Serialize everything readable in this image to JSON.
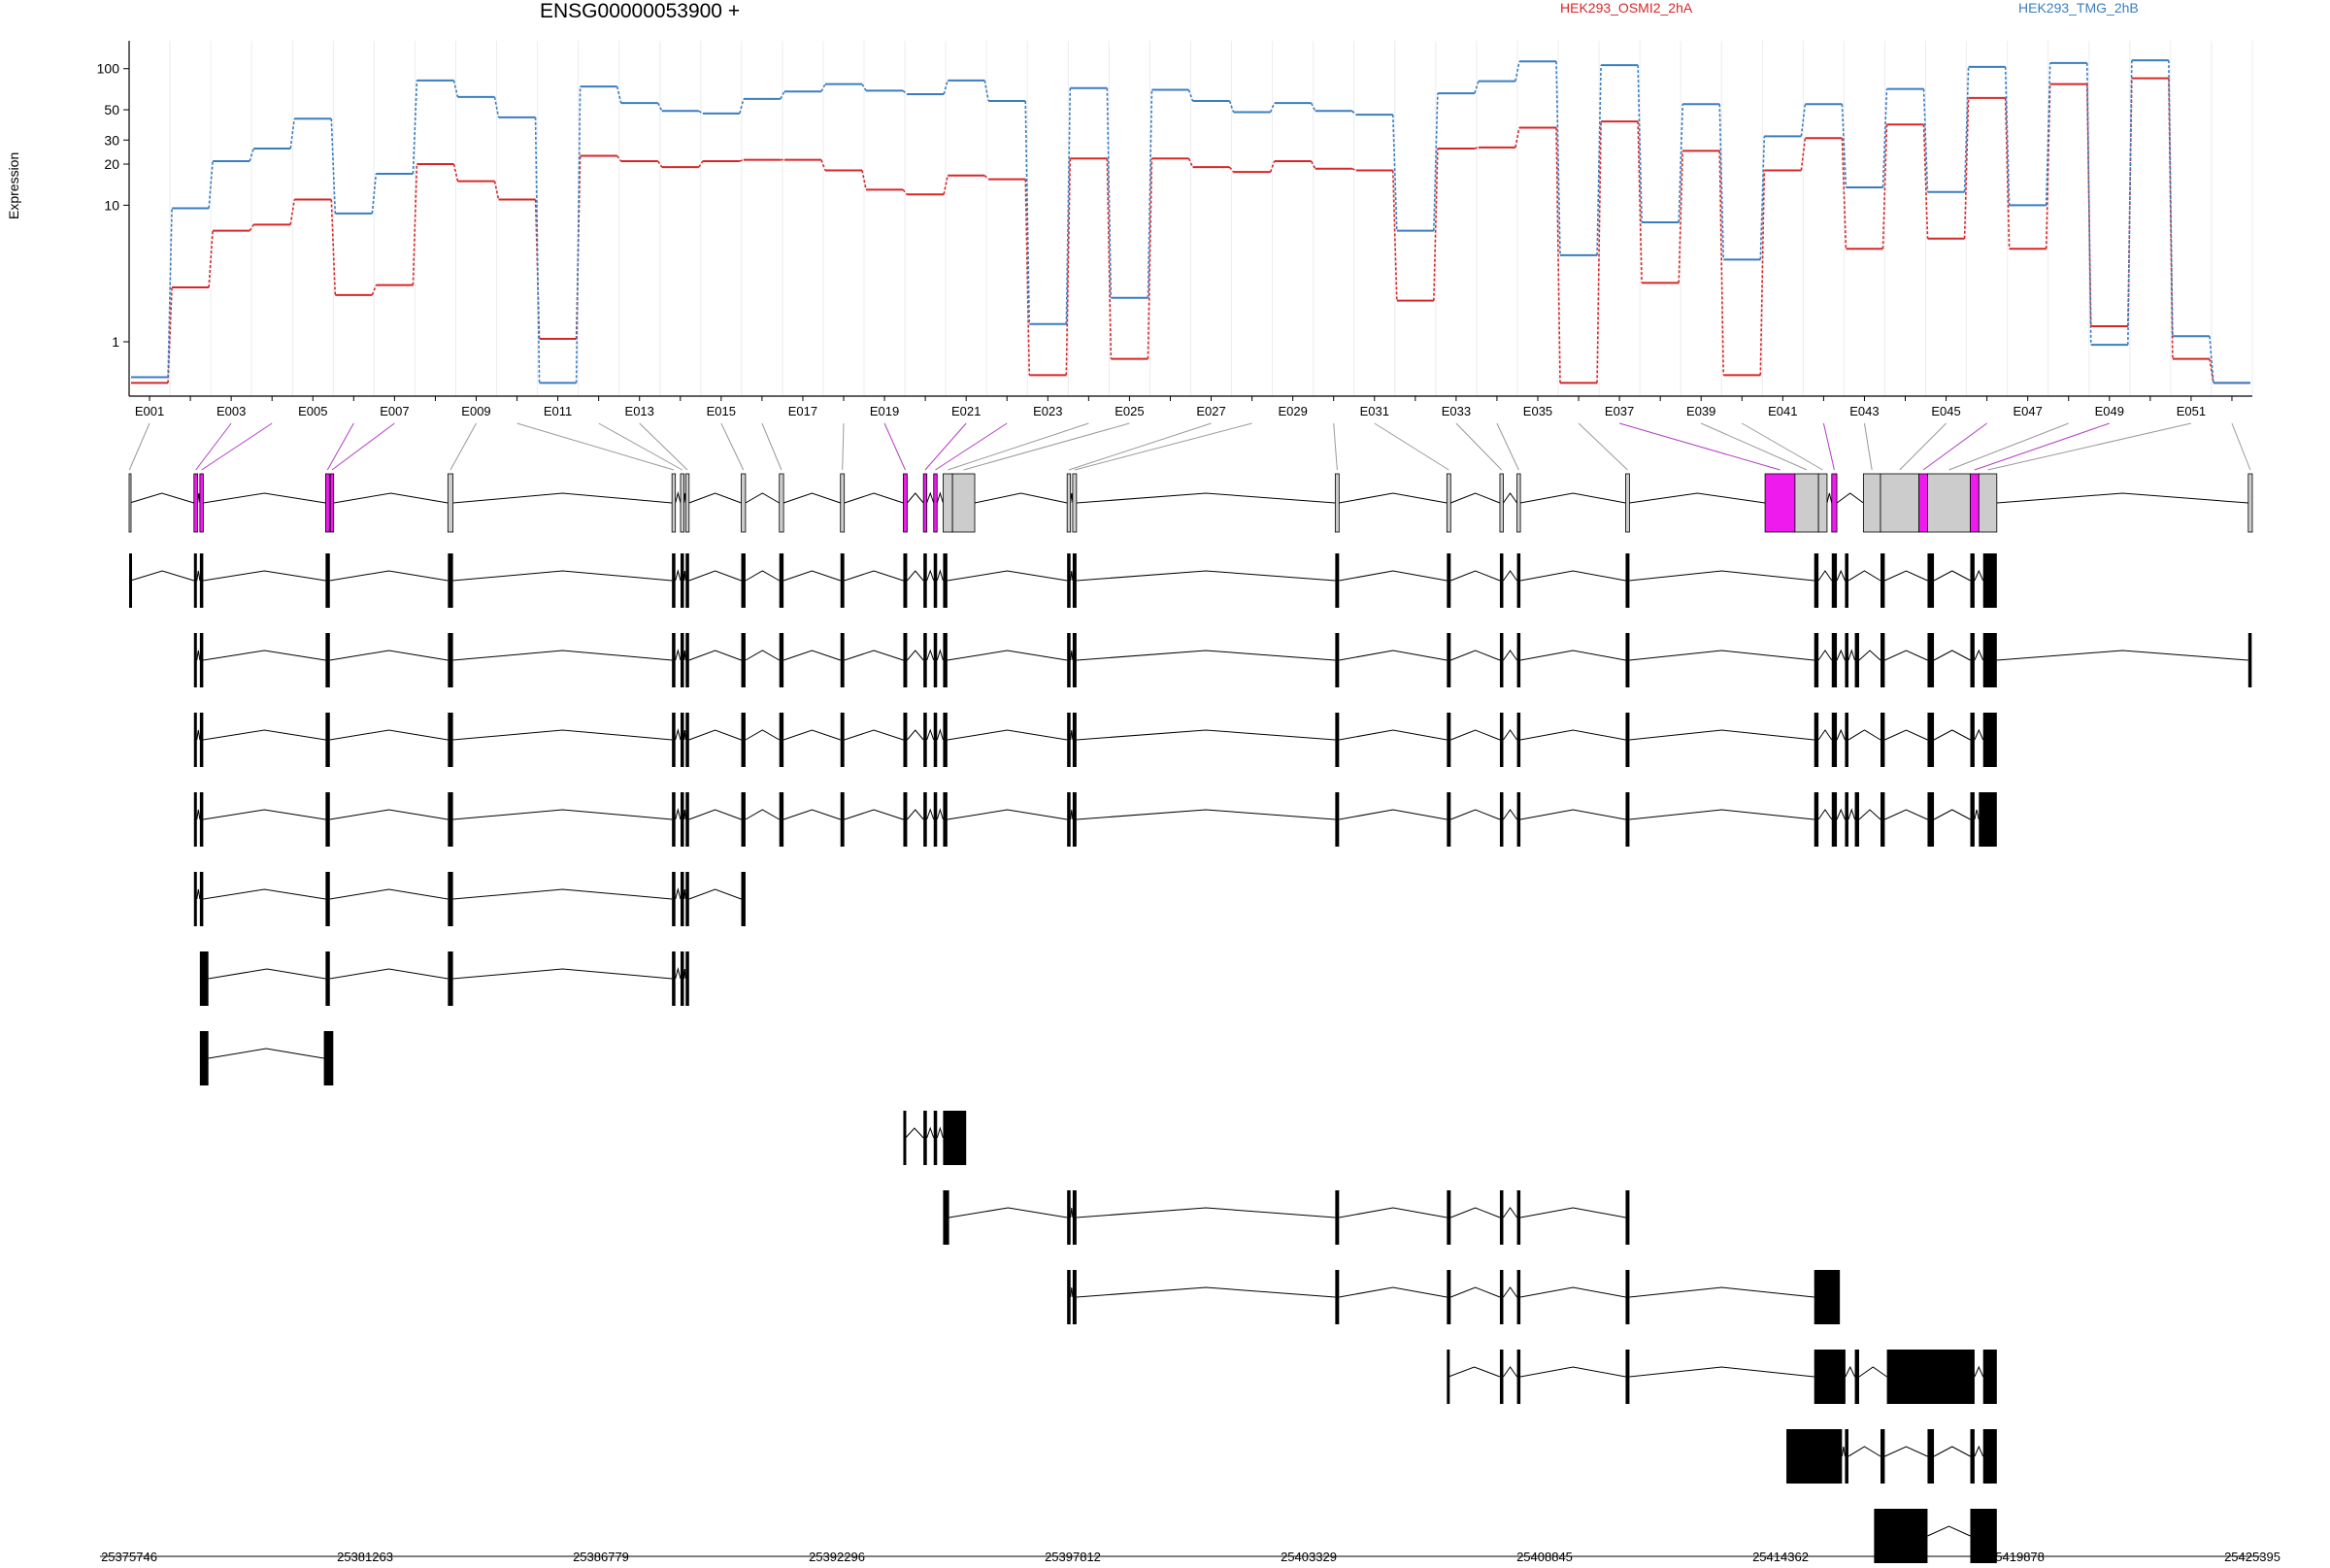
{
  "chart_data": {
    "type": "line",
    "title": "ENSG00000053900 +",
    "ylabel": "Expression",
    "xlabel": "",
    "yscale": "log",
    "ylim": [
      0.4,
      160
    ],
    "yticks": [
      1,
      10,
      20,
      30,
      50,
      100
    ],
    "exon_labels_shown": [
      "E001",
      "E003",
      "E005",
      "E007",
      "E009",
      "E011",
      "E013",
      "E015",
      "E017",
      "E019",
      "E021",
      "E023",
      "E025",
      "E027",
      "E029",
      "E031",
      "E033",
      "E035",
      "E037",
      "E039",
      "E041",
      "E043",
      "E045",
      "E047",
      "E049",
      "E051"
    ],
    "exons": [
      "E001",
      "E002",
      "E003",
      "E004",
      "E005",
      "E006",
      "E007",
      "E008",
      "E009",
      "E010",
      "E011",
      "E012",
      "E013",
      "E014",
      "E015",
      "E016",
      "E017",
      "E018",
      "E019",
      "E020",
      "E021",
      "E022",
      "E023",
      "E024",
      "E025",
      "E026",
      "E027",
      "E028",
      "E029",
      "E030",
      "E031",
      "E032",
      "E033",
      "E034",
      "E035",
      "E036",
      "E037",
      "E038",
      "E039",
      "E040",
      "E041",
      "E042",
      "E043",
      "E044",
      "E045",
      "E046",
      "E047",
      "E048",
      "E049",
      "E050",
      "E051",
      "E052"
    ],
    "series": [
      {
        "name": "HEK293_OSMI2_2hA",
        "color": "#d62728",
        "values": [
          0.5,
          2.5,
          6.5,
          7.2,
          11,
          2.2,
          2.6,
          20,
          15,
          11,
          1.05,
          23,
          21,
          19,
          21,
          21.5,
          21.5,
          18,
          13,
          12,
          16.5,
          15.5,
          0.57,
          22,
          0.75,
          22,
          19,
          17.5,
          21,
          18.5,
          18,
          2,
          26,
          26.5,
          37,
          0.5,
          41,
          2.7,
          25,
          0.57,
          18,
          31,
          4.8,
          39,
          5.7,
          61,
          4.8,
          77,
          1.3,
          85,
          0.75,
          0.5
        ]
      },
      {
        "name": "HEK293_TMG_2hB",
        "color": "#3a7dbf",
        "values": [
          0.55,
          9.5,
          21,
          26,
          43,
          8.7,
          17,
          82,
          62,
          44,
          0.5,
          74,
          56,
          49,
          47,
          60,
          68,
          77,
          69,
          65,
          82,
          58,
          1.35,
          72,
          2.1,
          70,
          58,
          48,
          56,
          49,
          46,
          6.5,
          66,
          81,
          113,
          4.3,
          106,
          7.5,
          55,
          4,
          32,
          55,
          13.5,
          71,
          12.5,
          103,
          10,
          110,
          0.95,
          115,
          1.1,
          0.5
        ]
      }
    ],
    "coordinates": {
      "start": 25375746,
      "end": 25425395,
      "tick_labels": [
        "25375746",
        "25381263",
        "25386779",
        "25392296",
        "25397812",
        "25403329",
        "25408845",
        "25414362",
        "25419878",
        "25425395"
      ]
    },
    "exon_model": {
      "spans": [
        [
          25375746,
          25375760
        ],
        [
          25377262,
          25377350
        ],
        [
          25377400,
          25377480
        ],
        [
          25380340,
          25380430
        ],
        [
          25380450,
          25380530
        ],
        [
          25383200,
          25383320
        ],
        [
          25388440,
          25388520
        ],
        [
          25388640,
          25388720
        ],
        [
          25388760,
          25388840
        ],
        [
          25390060,
          25390160
        ],
        [
          25390950,
          25391050
        ],
        [
          25392380,
          25392470
        ],
        [
          25393850,
          25393940
        ],
        [
          25394320,
          25394400
        ],
        [
          25394560,
          25394640
        ],
        [
          25394780,
          25395000
        ],
        [
          25395000,
          25395520
        ],
        [
          25397680,
          25397760
        ],
        [
          25397810,
          25397900
        ],
        [
          25403950,
          25404040
        ],
        [
          25406560,
          25406650
        ],
        [
          25407800,
          25407880
        ],
        [
          25408200,
          25408280
        ],
        [
          25410740,
          25410830
        ],
        [
          25414000,
          25414700
        ],
        [
          25414700,
          25415250
        ],
        [
          25415250,
          25415450
        ],
        [
          25415560,
          25415680
        ],
        [
          25416300,
          25416700
        ],
        [
          25416700,
          25417600
        ],
        [
          25417600,
          25417800
        ],
        [
          25417800,
          25418800
        ],
        [
          25418800,
          25419000
        ],
        [
          25419000,
          25419420
        ],
        [
          25425300,
          25425395
        ]
      ],
      "highlight": [
        false,
        true,
        true,
        true,
        true,
        false,
        false,
        false,
        false,
        false,
        false,
        false,
        true,
        true,
        true,
        false,
        false,
        false,
        false,
        false,
        false,
        false,
        false,
        false,
        true,
        false,
        false,
        true,
        false,
        false,
        true,
        false,
        true,
        false,
        false
      ]
    },
    "transcripts": [
      [
        [
          25375746,
          25375780
        ],
        [
          25377262,
          25377330
        ],
        [
          25377400,
          25377480
        ],
        [
          25380340,
          25380440
        ],
        [
          25383200,
          25383320
        ],
        [
          25388440,
          25388520
        ],
        [
          25388640,
          25388720
        ],
        [
          25388760,
          25388840
        ],
        [
          25390060,
          25390160
        ],
        [
          25390950,
          25391050
        ],
        [
          25392380,
          25392470
        ],
        [
          25393850,
          25393940
        ],
        [
          25394320,
          25394400
        ],
        [
          25394560,
          25394640
        ],
        [
          25394780,
          25394880
        ],
        [
          25397680,
          25397760
        ],
        [
          25397810,
          25397900
        ],
        [
          25403950,
          25404040
        ],
        [
          25406560,
          25406650
        ],
        [
          25407800,
          25407880
        ],
        [
          25408200,
          25408280
        ],
        [
          25410740,
          25410830
        ],
        [
          25415150,
          25415250
        ],
        [
          25415560,
          25415680
        ],
        [
          25415870,
          25415950
        ],
        [
          25416700,
          25416800
        ],
        [
          25417800,
          25417950
        ],
        [
          25418800,
          25418900
        ],
        [
          25419100,
          25419420
        ]
      ],
      [
        [
          25377262,
          25377330
        ],
        [
          25377400,
          25377480
        ],
        [
          25380340,
          25380440
        ],
        [
          25383200,
          25383320
        ],
        [
          25388440,
          25388520
        ],
        [
          25388640,
          25388720
        ],
        [
          25388760,
          25388840
        ],
        [
          25390060,
          25390160
        ],
        [
          25390950,
          25391050
        ],
        [
          25392380,
          25392470
        ],
        [
          25393850,
          25393940
        ],
        [
          25394320,
          25394400
        ],
        [
          25394560,
          25394640
        ],
        [
          25394780,
          25394880
        ],
        [
          25397680,
          25397760
        ],
        [
          25397810,
          25397900
        ],
        [
          25403950,
          25404040
        ],
        [
          25406560,
          25406650
        ],
        [
          25407800,
          25407880
        ],
        [
          25408200,
          25408280
        ],
        [
          25410740,
          25410830
        ],
        [
          25415150,
          25415250
        ],
        [
          25415560,
          25415680
        ],
        [
          25415870,
          25415950
        ],
        [
          25416100,
          25416200
        ],
        [
          25416700,
          25416800
        ],
        [
          25417800,
          25417950
        ],
        [
          25418800,
          25418900
        ],
        [
          25419100,
          25419420
        ],
        [
          25425300,
          25425380
        ]
      ],
      [
        [
          25377262,
          25377330
        ],
        [
          25377400,
          25377480
        ],
        [
          25380340,
          25380440
        ],
        [
          25383200,
          25383320
        ],
        [
          25388440,
          25388520
        ],
        [
          25388640,
          25388720
        ],
        [
          25388760,
          25388840
        ],
        [
          25390060,
          25390160
        ],
        [
          25390950,
          25391050
        ],
        [
          25392380,
          25392470
        ],
        [
          25393850,
          25393940
        ],
        [
          25394320,
          25394400
        ],
        [
          25394560,
          25394640
        ],
        [
          25394780,
          25394880
        ],
        [
          25397680,
          25397760
        ],
        [
          25397810,
          25397900
        ],
        [
          25403950,
          25404040
        ],
        [
          25406560,
          25406650
        ],
        [
          25407800,
          25407880
        ],
        [
          25408200,
          25408280
        ],
        [
          25410740,
          25410830
        ],
        [
          25415150,
          25415250
        ],
        [
          25415560,
          25415680
        ],
        [
          25415870,
          25415950
        ],
        [
          25416700,
          25416800
        ],
        [
          25417800,
          25417950
        ],
        [
          25418800,
          25418900
        ],
        [
          25419100,
          25419420
        ]
      ],
      [
        [
          25377262,
          25377330
        ],
        [
          25377400,
          25377480
        ],
        [
          25380340,
          25380440
        ],
        [
          25383200,
          25383320
        ],
        [
          25388440,
          25388520
        ],
        [
          25388640,
          25388720
        ],
        [
          25388760,
          25388840
        ],
        [
          25390060,
          25390160
        ],
        [
          25390950,
          25391050
        ],
        [
          25392380,
          25392470
        ],
        [
          25393850,
          25393940
        ],
        [
          25394320,
          25394400
        ],
        [
          25394560,
          25394640
        ],
        [
          25394780,
          25394880
        ],
        [
          25397680,
          25397760
        ],
        [
          25397810,
          25397900
        ],
        [
          25403950,
          25404040
        ],
        [
          25406560,
          25406650
        ],
        [
          25407800,
          25407880
        ],
        [
          25408200,
          25408280
        ],
        [
          25410740,
          25410830
        ],
        [
          25415150,
          25415250
        ],
        [
          25415560,
          25415680
        ],
        [
          25415870,
          25415950
        ],
        [
          25416100,
          25416200
        ],
        [
          25416700,
          25416800
        ],
        [
          25417800,
          25417950
        ],
        [
          25418800,
          25418900
        ],
        [
          25419000,
          25419420
        ]
      ],
      [
        [
          25377262,
          25377330
        ],
        [
          25377400,
          25377480
        ],
        [
          25380340,
          25380440
        ],
        [
          25383200,
          25383320
        ],
        [
          25388440,
          25388520
        ],
        [
          25388640,
          25388720
        ],
        [
          25388760,
          25388840
        ],
        [
          25390060,
          25390160
        ]
      ],
      [
        [
          25377400,
          25377600
        ],
        [
          25380340,
          25380440
        ],
        [
          25383200,
          25383320
        ],
        [
          25388440,
          25388520
        ],
        [
          25388640,
          25388720
        ],
        [
          25388760,
          25388840
        ]
      ],
      [
        [
          25377400,
          25377600
        ],
        [
          25380300,
          25380520
        ]
      ],
      [
        [
          25393850,
          25393900
        ],
        [
          25394320,
          25394400
        ],
        [
          25394560,
          25394640
        ],
        [
          25394780,
          25395320
        ]
      ],
      [
        [
          25394780,
          25394920
        ],
        [
          25397680,
          25397760
        ],
        [
          25397810,
          25397900
        ],
        [
          25403950,
          25404040
        ],
        [
          25406560,
          25406650
        ],
        [
          25407800,
          25407880
        ],
        [
          25408200,
          25408280
        ],
        [
          25410740,
          25410830
        ]
      ],
      [
        [
          25397680,
          25397760
        ],
        [
          25397810,
          25397900
        ],
        [
          25403950,
          25404040
        ],
        [
          25406560,
          25406650
        ],
        [
          25407800,
          25407880
        ],
        [
          25408200,
          25408280
        ],
        [
          25410740,
          25410830
        ],
        [
          25415150,
          25415750
        ]
      ],
      [
        [
          25406560,
          25406600
        ],
        [
          25407800,
          25407880
        ],
        [
          25408200,
          25408280
        ],
        [
          25410740,
          25410830
        ],
        [
          25415150,
          25415880
        ],
        [
          25416100,
          25416200
        ],
        [
          25416850,
          25418900
        ],
        [
          25419100,
          25419420
        ]
      ],
      [
        [
          25414500,
          25415800
        ],
        [
          25415870,
          25415950
        ],
        [
          25416700,
          25416800
        ],
        [
          25417800,
          25417950
        ],
        [
          25418800,
          25418900
        ],
        [
          25419100,
          25419420
        ]
      ],
      [
        [
          25416550,
          25417800
        ],
        [
          25418800,
          25419420
        ]
      ]
    ]
  }
}
